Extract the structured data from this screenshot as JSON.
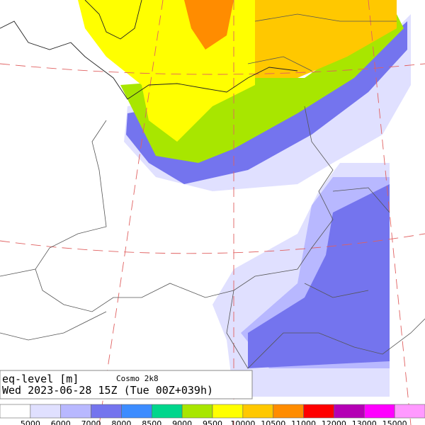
{
  "header": {
    "variable": "eq-level [m]",
    "model": "Cosmo 2k8",
    "valid_time": "Wed 2023-06-28 15Z (Tue 00Z+039h)"
  },
  "legend": {
    "levels": [
      5000,
      6000,
      7000,
      8000,
      8500,
      9000,
      9500,
      10000,
      10500,
      11000,
      12000,
      13000,
      15000
    ],
    "colors": [
      "#ffffff",
      "#e0e0ff",
      "#b8b8ff",
      "#7474ee",
      "#3c8cff",
      "#00d68c",
      "#a8e600",
      "#ffff00",
      "#ffc800",
      "#ff8c00",
      "#ff0000",
      "#b400b4",
      "#ff00ff",
      "#ff99ff"
    ]
  }
}
